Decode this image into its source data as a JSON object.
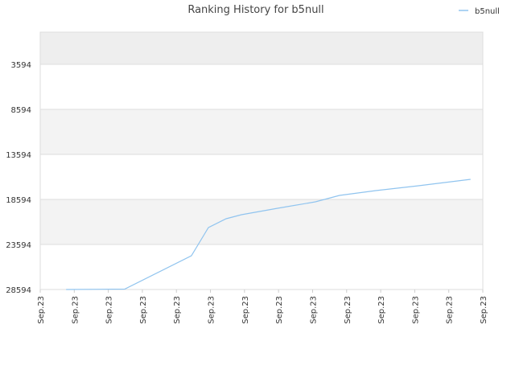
{
  "chart_data": {
    "type": "line",
    "title": "Ranking History for b5null",
    "x": [
      0.76,
      2.48,
      4.44,
      4.94,
      5.46,
      5.91,
      6.97,
      8.08,
      8.79,
      9.86,
      11.11,
      12.64
    ],
    "series": [
      {
        "name": "b5null",
        "color": "#90c4ef",
        "values": [
          28594,
          28550,
          24844,
          21719,
          20737,
          20290,
          19576,
          18862,
          18147,
          17612,
          17076,
          16362
        ]
      }
    ],
    "xlim": [
      0,
      13
    ],
    "xticks": [
      {
        "value": 0,
        "label": "Sep.23"
      },
      {
        "value": 1,
        "label": "Sep.23"
      },
      {
        "value": 2,
        "label": "Sep.23"
      },
      {
        "value": 3,
        "label": "Sep.23"
      },
      {
        "value": 4,
        "label": "Sep.23"
      },
      {
        "value": 5,
        "label": "Sep.23"
      },
      {
        "value": 6,
        "label": "Sep.23"
      },
      {
        "value": 7,
        "label": "Sep.23"
      },
      {
        "value": 8,
        "label": "Sep.23"
      },
      {
        "value": 9,
        "label": "Sep.23"
      },
      {
        "value": 10,
        "label": "Sep.23"
      },
      {
        "value": 11,
        "label": "Sep.23"
      },
      {
        "value": 12,
        "label": "Sep.23"
      },
      {
        "value": 13,
        "label": "Sep.23"
      }
    ],
    "ylim": [
      28594,
      23
    ],
    "yticks": [
      3594,
      8594,
      13594,
      18594,
      23594,
      28594
    ],
    "grid": true,
    "legend": "top-right"
  }
}
